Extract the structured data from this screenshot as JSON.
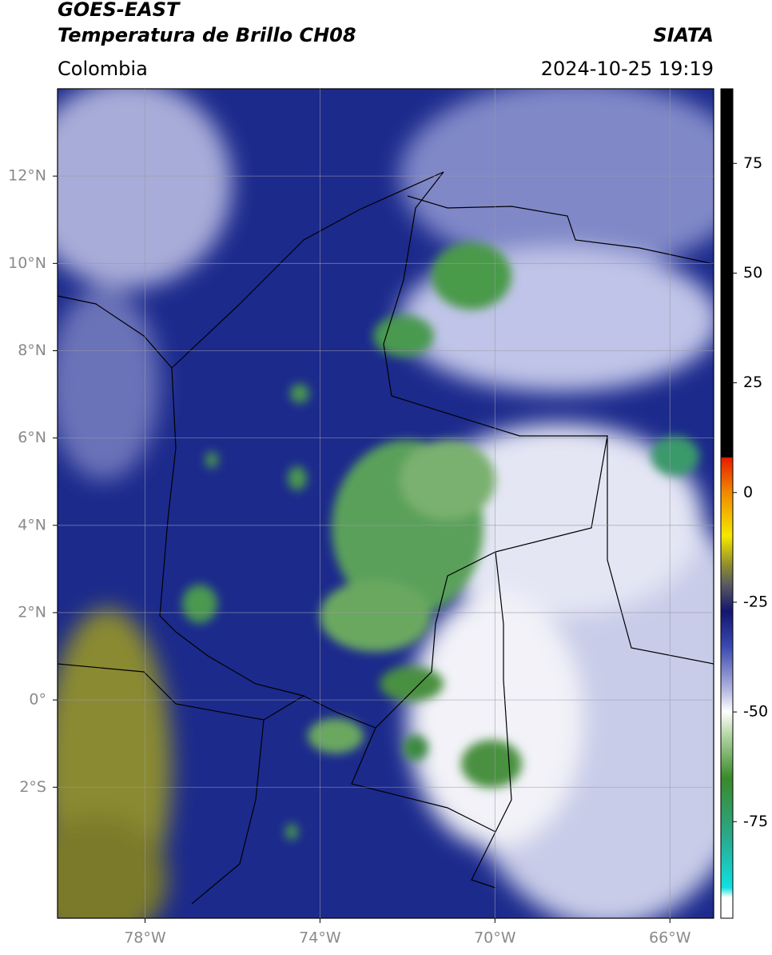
{
  "header": {
    "title": "GOES-EAST",
    "subtitle": "Temperatura de Brillo CH08",
    "source": "SIATA",
    "region": "Colombia",
    "datetime": "2024-10-25 19:19"
  },
  "map": {
    "xlim": [
      -80,
      -65
    ],
    "ylim": [
      -5,
      14
    ],
    "xticks": [
      {
        "value": -78,
        "label": "78°W"
      },
      {
        "value": -74,
        "label": "74°W"
      },
      {
        "value": -70,
        "label": "70°W"
      },
      {
        "value": -66,
        "label": "66°W"
      }
    ],
    "yticks": [
      {
        "value": -2,
        "label": "2°S"
      },
      {
        "value": 0,
        "label": "0°"
      },
      {
        "value": 2,
        "label": "2°N"
      },
      {
        "value": 4,
        "label": "4°N"
      },
      {
        "value": 6,
        "label": "6°N"
      },
      {
        "value": 8,
        "label": "8°N"
      },
      {
        "value": 10,
        "label": "10°N"
      },
      {
        "value": 12,
        "label": "12°N"
      }
    ],
    "grid": true
  },
  "colorbar": {
    "lim": [
      -97,
      92
    ],
    "ticks": [
      -75,
      -50,
      -25,
      0,
      25,
      50,
      75
    ]
  }
}
